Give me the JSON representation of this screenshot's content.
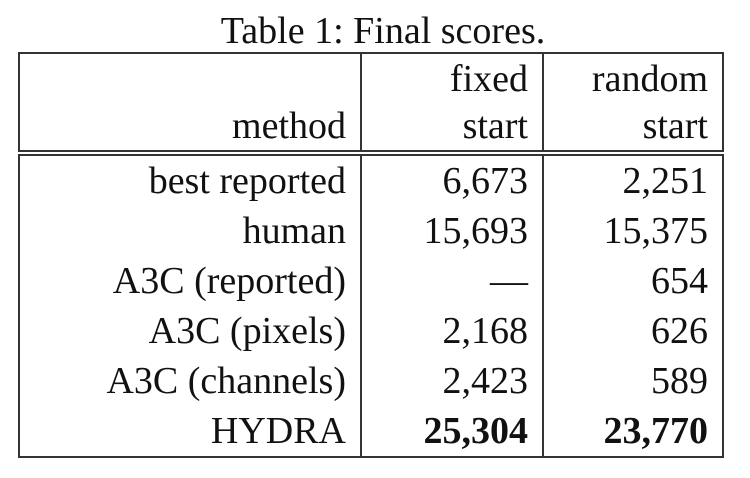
{
  "caption": "Table 1: Final scores.",
  "table": {
    "header": [
      [
        "method"
      ],
      [
        "fixed",
        "start"
      ],
      [
        "random",
        "start"
      ]
    ],
    "rows": [
      [
        "best reported",
        "6,673",
        "2,251"
      ],
      [
        "human",
        "15,693",
        "15,375"
      ],
      [
        "A3C (reported)",
        "—",
        "654"
      ],
      [
        "A3C (pixels)",
        "2,168",
        "626"
      ],
      [
        "A3C (channels)",
        "2,423",
        "589"
      ],
      [
        "HYDRA",
        "25,304",
        "23,770"
      ]
    ]
  }
}
